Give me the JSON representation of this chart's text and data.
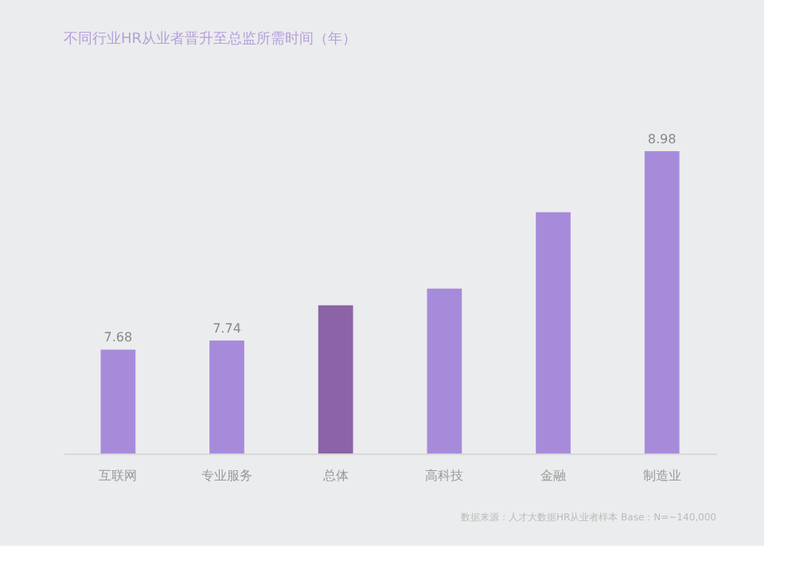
{
  "chart_data": {
    "type": "bar",
    "title": "不同行业HR从业者晋升至总监所需时间（年）",
    "categories": [
      "互联网",
      "专业服务",
      "总体",
      "高科技",
      "金融",
      "制造业"
    ],
    "values": [
      7.68,
      7.74,
      7.97,
      8.08,
      8.58,
      8.98
    ],
    "value_labels": [
      "7.68",
      "7.74",
      null,
      null,
      null,
      "8.98"
    ],
    "colors": [
      "#a78bdb",
      "#a78bdb",
      "#8b63a6",
      "#a78bdb",
      "#a78bdb",
      "#a78bdb"
    ],
    "ylim": [
      7.0,
      8.98
    ],
    "tick_labels": "x",
    "grid": false,
    "annotations": [
      "数据来源：人才大数据HR从业者样本  Base：N=~140,000"
    ]
  }
}
